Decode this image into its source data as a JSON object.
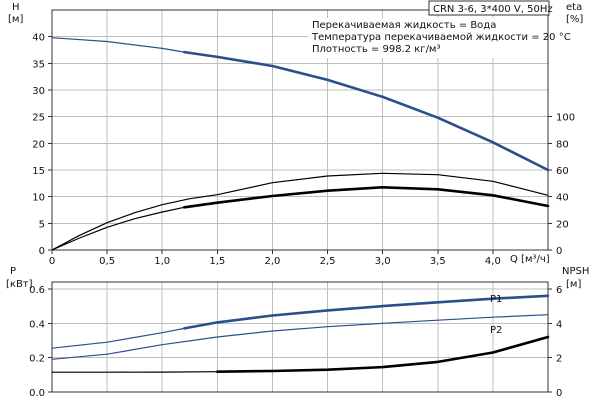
{
  "model_box": "CRN 3-6, 3*400 V, 50Hz",
  "fluid_info": [
    "Перекачиваемая жидкость = Вода",
    "Температура перекачиваемой жидкости = 20 °C",
    "Плотность = 998.2 кг/м³"
  ],
  "colors": {
    "head": "#2a4f8a",
    "p1": "#2a4f8a",
    "p2": "#2a4f8a",
    "efficiency": "#000000",
    "npsh": "#000000",
    "grid": "#bfbfbf"
  },
  "chart_data": [
    {
      "type": "line",
      "panel": "head-and-efficiency",
      "x_label": "Q [м³/ч]",
      "x_ticks": [
        "0",
        "0,5",
        "1,0",
        "1,5",
        "2,0",
        "2,5",
        "3,0",
        "3,5",
        "4,0"
      ],
      "xlim": [
        0,
        4.5
      ],
      "y_label_line1": "H",
      "y_label_line2": "[м]",
      "y_ticks": [
        "0",
        "5",
        "10",
        "15",
        "20",
        "25",
        "30",
        "35",
        "40"
      ],
      "ylim": [
        0,
        45
      ],
      "y2_label_line1": "eta",
      "y2_label_line2": "[%]",
      "y2_ticks": [
        "0",
        "20",
        "40",
        "60",
        "80",
        "100"
      ],
      "y2lim": [
        0,
        180
      ],
      "grid": true,
      "series": [
        {
          "key": "head",
          "axis": "left",
          "x": [
            0,
            0.5,
            1.0,
            1.2,
            1.5,
            2.0,
            2.5,
            3.0,
            3.5,
            4.0,
            4.5
          ],
          "y": [
            39.8,
            39.1,
            37.8,
            37.1,
            36.2,
            34.5,
            31.9,
            28.7,
            24.8,
            20.2,
            15.0
          ],
          "bold_from": 1.2
        },
        {
          "key": "efficiency-upper",
          "axis": "right",
          "x": [
            0,
            0.25,
            0.5,
            0.75,
            1.0,
            1.25,
            1.5,
            2.0,
            2.5,
            3.0,
            3.5,
            4.0,
            4.5
          ],
          "y": [
            0,
            11,
            20.5,
            28,
            34,
            38.5,
            41.5,
            50.5,
            55.5,
            57.5,
            56.5,
            51.5,
            41
          ],
          "bold_from": 99
        },
        {
          "key": "efficiency",
          "axis": "right",
          "x": [
            0,
            0.25,
            0.5,
            0.75,
            1.0,
            1.2,
            1.5,
            2.0,
            2.5,
            3.0,
            3.5,
            4.0,
            4.5
          ],
          "y": [
            0,
            9,
            17,
            23.5,
            28.5,
            32,
            35.5,
            40.5,
            44.5,
            47,
            45.5,
            41,
            33
          ],
          "bold_from": 1.2
        }
      ]
    },
    {
      "type": "line",
      "panel": "power-and-npsh",
      "y_label_line1": "P",
      "y_label_line2": "[кВт]",
      "y_ticks": [
        "0.0",
        "0.2",
        "0.4",
        "0.6"
      ],
      "ylim": [
        0,
        0.64
      ],
      "y2_label_line1": "NPSH",
      "y2_label_line2": "[м]",
      "y2_ticks": [
        "0",
        "2",
        "4",
        "6"
      ],
      "y2lim": [
        0,
        6.4
      ],
      "xlim": [
        0,
        4.5
      ],
      "grid": true,
      "series": [
        {
          "key": "p1",
          "name": "P1",
          "axis": "left",
          "x": [
            0,
            0.5,
            1.0,
            1.2,
            1.5,
            2.0,
            2.5,
            3.0,
            3.5,
            4.0,
            4.5
          ],
          "y": [
            0.255,
            0.29,
            0.345,
            0.37,
            0.405,
            0.445,
            0.475,
            0.5,
            0.522,
            0.543,
            0.56
          ],
          "bold_from": 1.2
        },
        {
          "key": "p2",
          "name": "P2",
          "axis": "left",
          "x": [
            0,
            0.5,
            1.0,
            1.5,
            2.0,
            2.5,
            3.0,
            3.5,
            4.0,
            4.5
          ],
          "y": [
            0.19,
            0.22,
            0.275,
            0.32,
            0.355,
            0.38,
            0.4,
            0.418,
            0.435,
            0.45
          ],
          "bold_from": 99
        },
        {
          "key": "npsh",
          "axis": "right",
          "x": [
            0,
            0.5,
            1.0,
            1.5,
            2.0,
            2.5,
            3.0,
            3.5,
            4.0,
            4.5
          ],
          "y": [
            1.15,
            1.15,
            1.16,
            1.18,
            1.22,
            1.3,
            1.45,
            1.75,
            2.3,
            3.2
          ],
          "bold_from": 1.2
        }
      ]
    }
  ]
}
